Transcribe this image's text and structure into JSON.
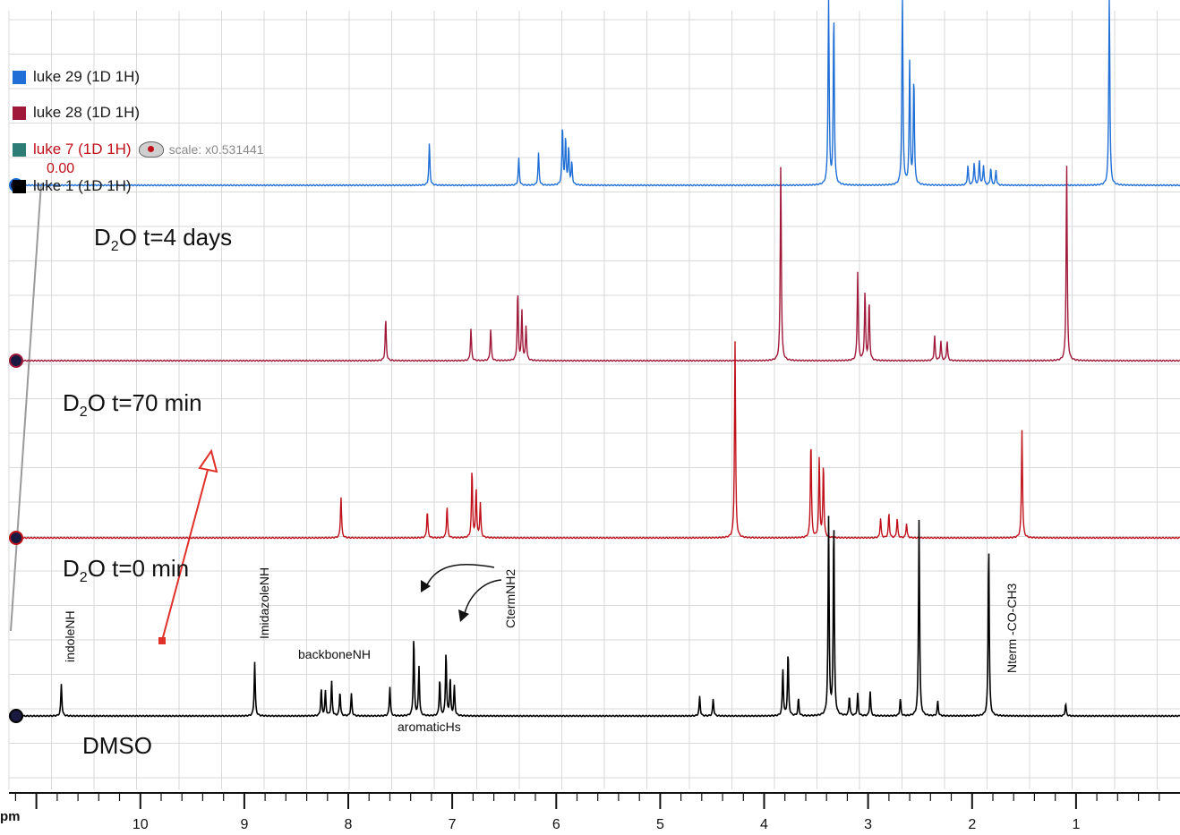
{
  "legend": [
    {
      "label": "luke 29 (1D 1H)",
      "color": "#1f6fd6",
      "label_color": "#1a1a1a"
    },
    {
      "label": "luke 28 (1D 1H)",
      "color": "#a0193a",
      "label_color": "#1a1a1a"
    },
    {
      "label": "luke 7 (1D 1H)",
      "color": "#2d7c75",
      "label_color": "#c0101a",
      "scale": "scale: x0.531441"
    },
    {
      "label": "luke 1 (1D 1H)",
      "color": "#000000",
      "label_color": "#1a1a1a"
    }
  ],
  "offset_label": "0.00",
  "conditions": {
    "d4": {
      "pre": "D",
      "sub": "2",
      "post": "O t=4 days"
    },
    "d70": {
      "pre": "D",
      "sub": "2",
      "post": "O t=70 min"
    },
    "d0": {
      "pre": "D",
      "sub": "2",
      "post": "O t=0 min"
    },
    "dmso": "DMSO"
  },
  "annotations": {
    "indole": "indoleNH",
    "imidazole": "ImidazoleNH",
    "backbone": "backboneNH",
    "aromatic": "aromaticHs",
    "cterm": "CtermNH2",
    "nterm": "Nterm -CO-CH3"
  },
  "axis_unit": "pm",
  "chart_data": {
    "type": "line",
    "xlabel": "",
    "ylabel": "",
    "xlim": [
      11.35,
      0.0
    ],
    "x_reversed": true,
    "xticks": [
      10,
      9,
      8,
      7,
      6,
      5,
      4,
      3,
      2,
      1
    ],
    "series": [
      {
        "name": "luke 29 (1D 1H)",
        "color": "#1f6fd6",
        "peaks": [
          [
            7.22,
            0.85
          ],
          [
            6.36,
            0.55
          ],
          [
            6.17,
            0.65
          ],
          [
            5.94,
            1.2
          ],
          [
            5.91,
            0.95
          ],
          [
            5.88,
            0.75
          ],
          [
            5.85,
            0.45
          ],
          [
            3.38,
            4.0
          ],
          [
            3.33,
            3.5
          ],
          [
            2.67,
            4.0
          ],
          [
            2.6,
            2.5
          ],
          [
            2.56,
            2.2
          ],
          [
            2.04,
            0.4
          ],
          [
            1.98,
            0.45
          ],
          [
            1.93,
            0.5
          ],
          [
            1.89,
            0.4
          ],
          [
            1.82,
            0.35
          ],
          [
            1.77,
            0.3
          ],
          [
            0.68,
            4.0
          ]
        ]
      },
      {
        "name": "luke 28 (1D 1H)",
        "color": "#a0193a",
        "peaks": [
          [
            7.64,
            0.85
          ],
          [
            6.82,
            0.65
          ],
          [
            6.63,
            0.65
          ],
          [
            6.37,
            1.4
          ],
          [
            6.33,
            1.0
          ],
          [
            6.29,
            0.7
          ],
          [
            3.84,
            4.0
          ],
          [
            3.1,
            1.8
          ],
          [
            3.03,
            1.4
          ],
          [
            2.99,
            1.2
          ],
          [
            2.36,
            0.5
          ],
          [
            2.3,
            0.4
          ],
          [
            2.24,
            0.4
          ],
          [
            1.09,
            4.0
          ]
        ]
      },
      {
        "name": "luke 7 (1D 1H)",
        "color": "#c0101a",
        "peaks": [
          [
            8.07,
            0.85
          ],
          [
            7.24,
            0.55
          ],
          [
            7.05,
            0.65
          ],
          [
            6.81,
            1.4
          ],
          [
            6.77,
            1.0
          ],
          [
            6.73,
            0.7
          ],
          [
            4.28,
            4.0
          ],
          [
            3.55,
            2.0
          ],
          [
            3.47,
            1.6
          ],
          [
            3.43,
            1.5
          ],
          [
            2.88,
            0.4
          ],
          [
            2.8,
            0.5
          ],
          [
            2.72,
            0.4
          ],
          [
            2.63,
            0.3
          ],
          [
            1.52,
            2.2
          ]
        ]
      },
      {
        "name": "luke 1 (1D 1H)",
        "color": "#000000",
        "peaks": [
          [
            10.76,
            0.65
          ],
          [
            8.9,
            1.1
          ],
          [
            8.26,
            0.55
          ],
          [
            8.22,
            0.5
          ],
          [
            8.16,
            0.7
          ],
          [
            8.08,
            0.5
          ],
          [
            7.97,
            0.45
          ],
          [
            7.6,
            0.6
          ],
          [
            7.37,
            1.6
          ],
          [
            7.32,
            1.0
          ],
          [
            7.12,
            0.75
          ],
          [
            7.06,
            1.3
          ],
          [
            7.02,
            0.75
          ],
          [
            6.98,
            0.6
          ],
          [
            4.62,
            0.4
          ],
          [
            4.49,
            0.35
          ],
          [
            3.82,
            0.95
          ],
          [
            3.77,
            1.3
          ],
          [
            3.67,
            0.35
          ],
          [
            3.38,
            4.0
          ],
          [
            3.33,
            4.0
          ],
          [
            3.18,
            0.4
          ],
          [
            3.1,
            0.45
          ],
          [
            2.98,
            0.5
          ],
          [
            2.69,
            0.35
          ],
          [
            2.51,
            4.0
          ],
          [
            2.33,
            0.3
          ],
          [
            1.84,
            3.5
          ],
          [
            1.1,
            0.25
          ]
        ]
      }
    ]
  }
}
